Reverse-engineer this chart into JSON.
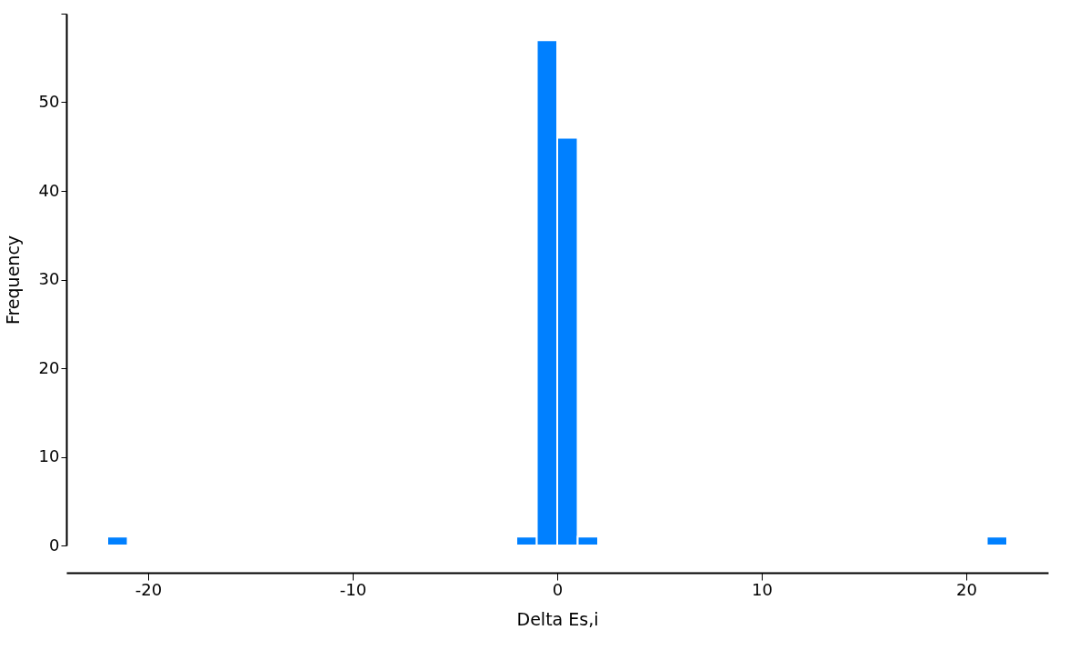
{
  "chart_data": {
    "type": "histogram",
    "xlabel": "Delta Es,i",
    "ylabel": "Frequency",
    "color": "#0080ff",
    "bins": [
      -22,
      -21,
      -20,
      -19,
      -18,
      -17,
      -16,
      -15,
      -14,
      -13,
      -12,
      -11,
      -10,
      -9,
      -8,
      -7,
      -6,
      -5,
      -4,
      -3,
      -2,
      -1,
      0,
      1,
      2,
      3,
      4,
      5,
      6,
      7,
      8,
      9,
      10,
      11,
      12,
      13,
      14,
      15,
      16,
      17,
      18,
      19,
      20,
      21,
      22
    ],
    "values": [
      1,
      0,
      0,
      0,
      0,
      0,
      0,
      0,
      0,
      0,
      0,
      0,
      0,
      0,
      0,
      0,
      0,
      0,
      0,
      0,
      1,
      57,
      46,
      1,
      0,
      0,
      0,
      0,
      0,
      0,
      0,
      0,
      0,
      0,
      0,
      0,
      0,
      0,
      0,
      0,
      0,
      0,
      0,
      1
    ],
    "xlim": [
      -24,
      24
    ],
    "ylim": [
      0,
      60
    ],
    "xticks": [
      -20,
      -10,
      0,
      10,
      20
    ],
    "yticks": [
      0,
      10,
      20,
      30,
      40,
      50,
      {
        "value": 60,
        "label": null
      }
    ],
    "grid": false
  }
}
